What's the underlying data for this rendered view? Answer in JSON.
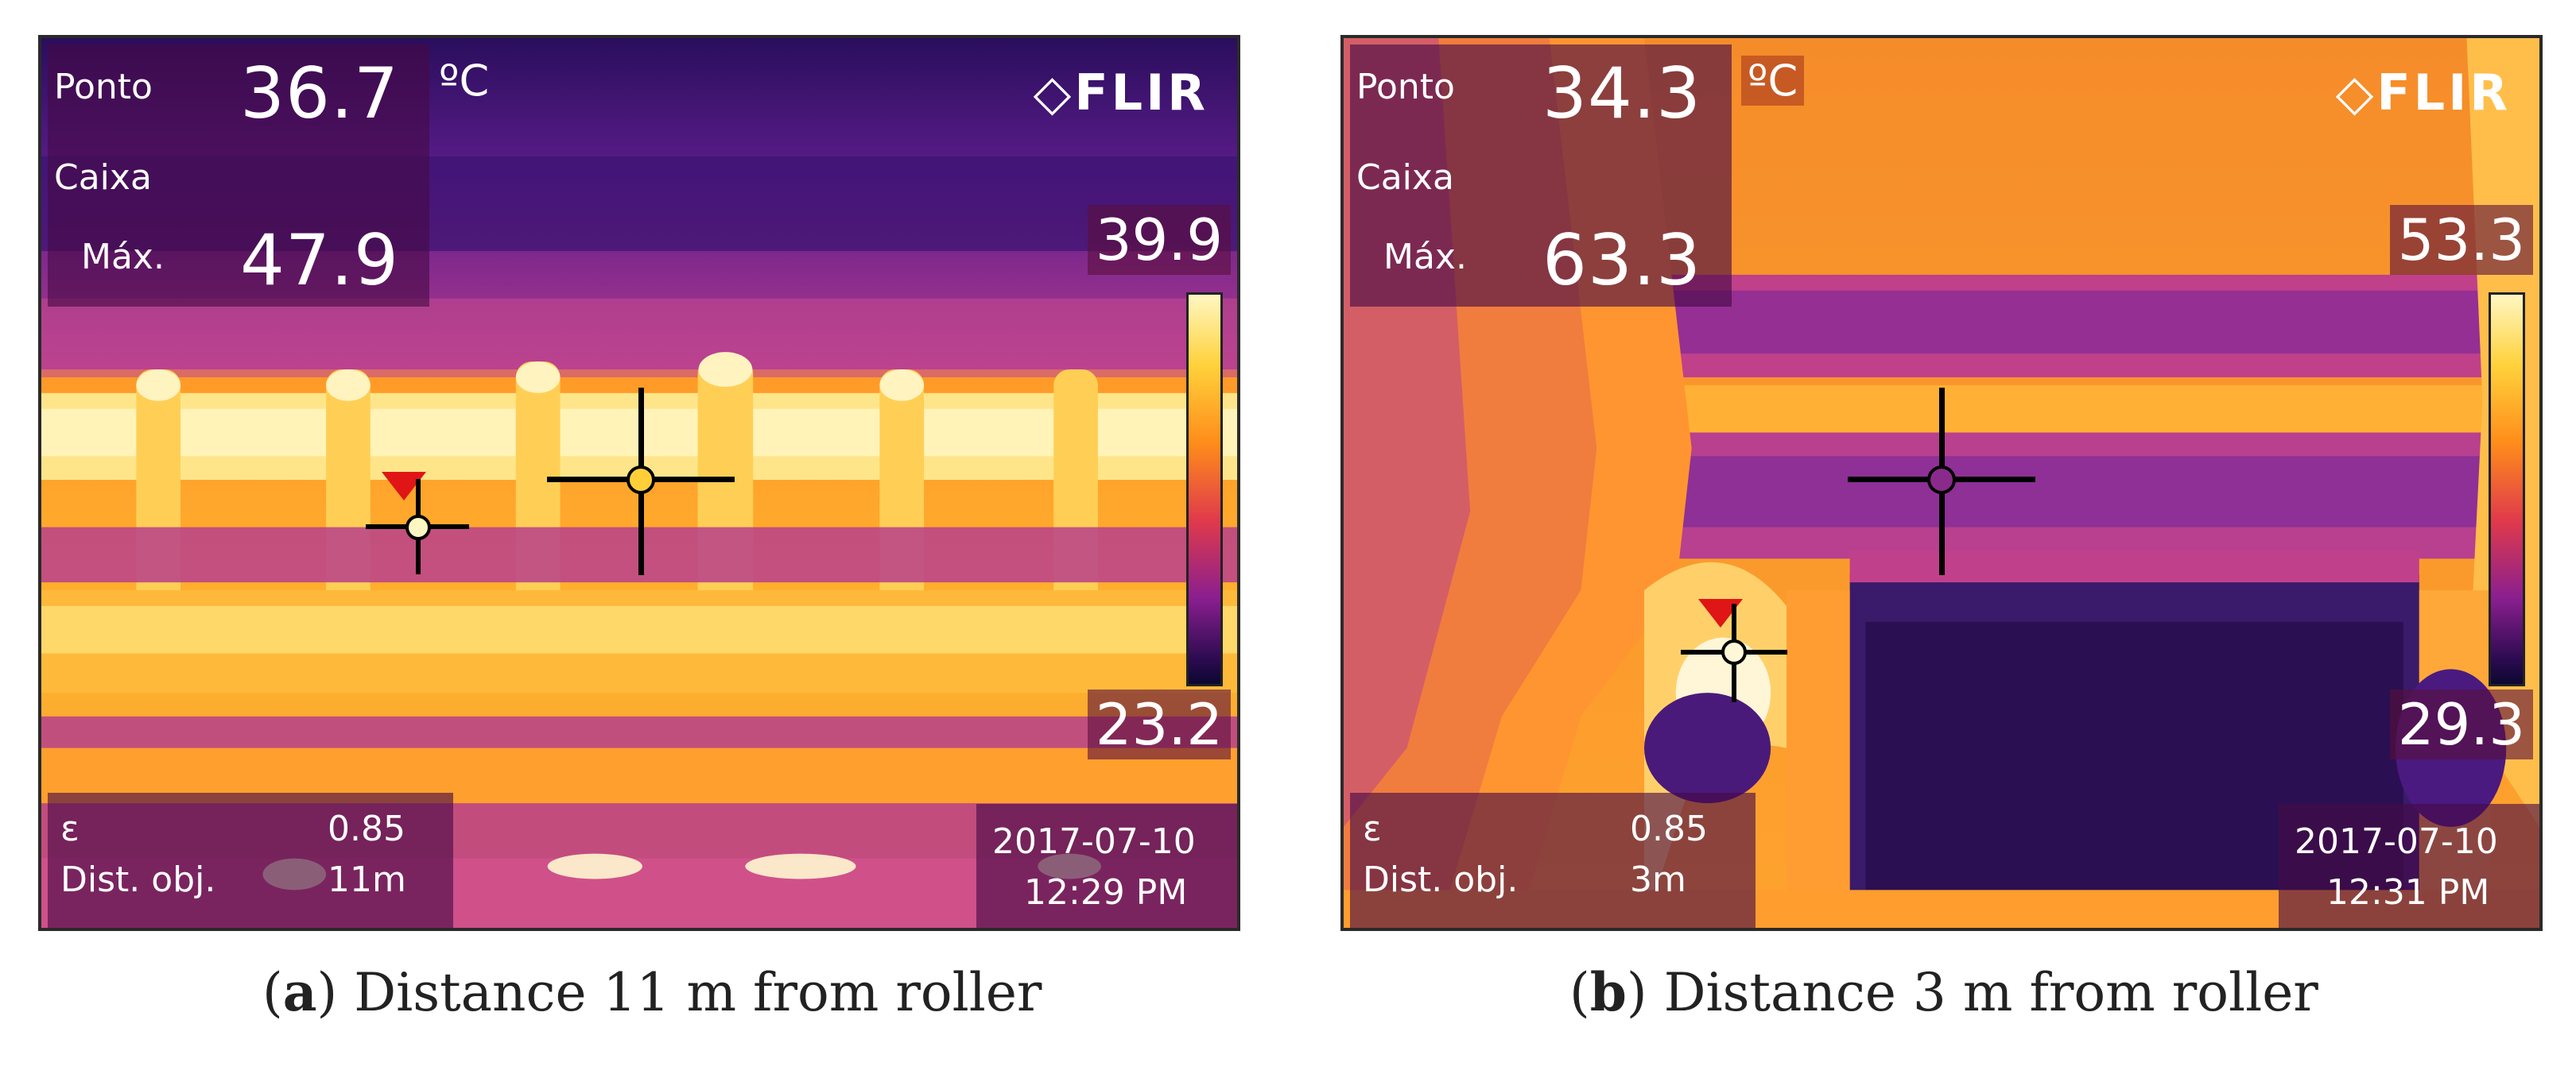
{
  "panels": [
    {
      "id": "a",
      "spot_label": "Ponto",
      "spot_value": "36.7",
      "unit": "ºC",
      "box_label": "Caixa",
      "max_label": "Máx.",
      "max_value": "47.9",
      "brand": "FLIR",
      "scale_max": "39.9",
      "scale_min": "23.2",
      "emissivity_label": "ε",
      "emissivity_value": "0.85",
      "distance_label": "Dist. obj.",
      "distance_value": "11m",
      "date": "2017-07-10",
      "time": "12:29 PM",
      "caption_letter": "a",
      "caption_text": "Distance 11 m from roller"
    },
    {
      "id": "b",
      "spot_label": "Ponto",
      "spot_value": "34.3",
      "unit": "ºC",
      "box_label": "Caixa",
      "max_label": "Máx.",
      "max_value": "63.3",
      "brand": "FLIR",
      "scale_max": "53.3",
      "scale_min": "29.3",
      "emissivity_label": "ε",
      "emissivity_value": "0.85",
      "distance_label": "Dist. obj.",
      "distance_value": "3m",
      "date": "2017-07-10",
      "time": "12:31 PM",
      "caption_letter": "b",
      "caption_text": "Distance 3 m from roller"
    }
  ],
  "colors": {
    "hot": "#fff7c2",
    "warm": "#ffb52e",
    "mid": "#e0405a",
    "cool": "#7a1d8c",
    "cold": "#1a0b45"
  }
}
